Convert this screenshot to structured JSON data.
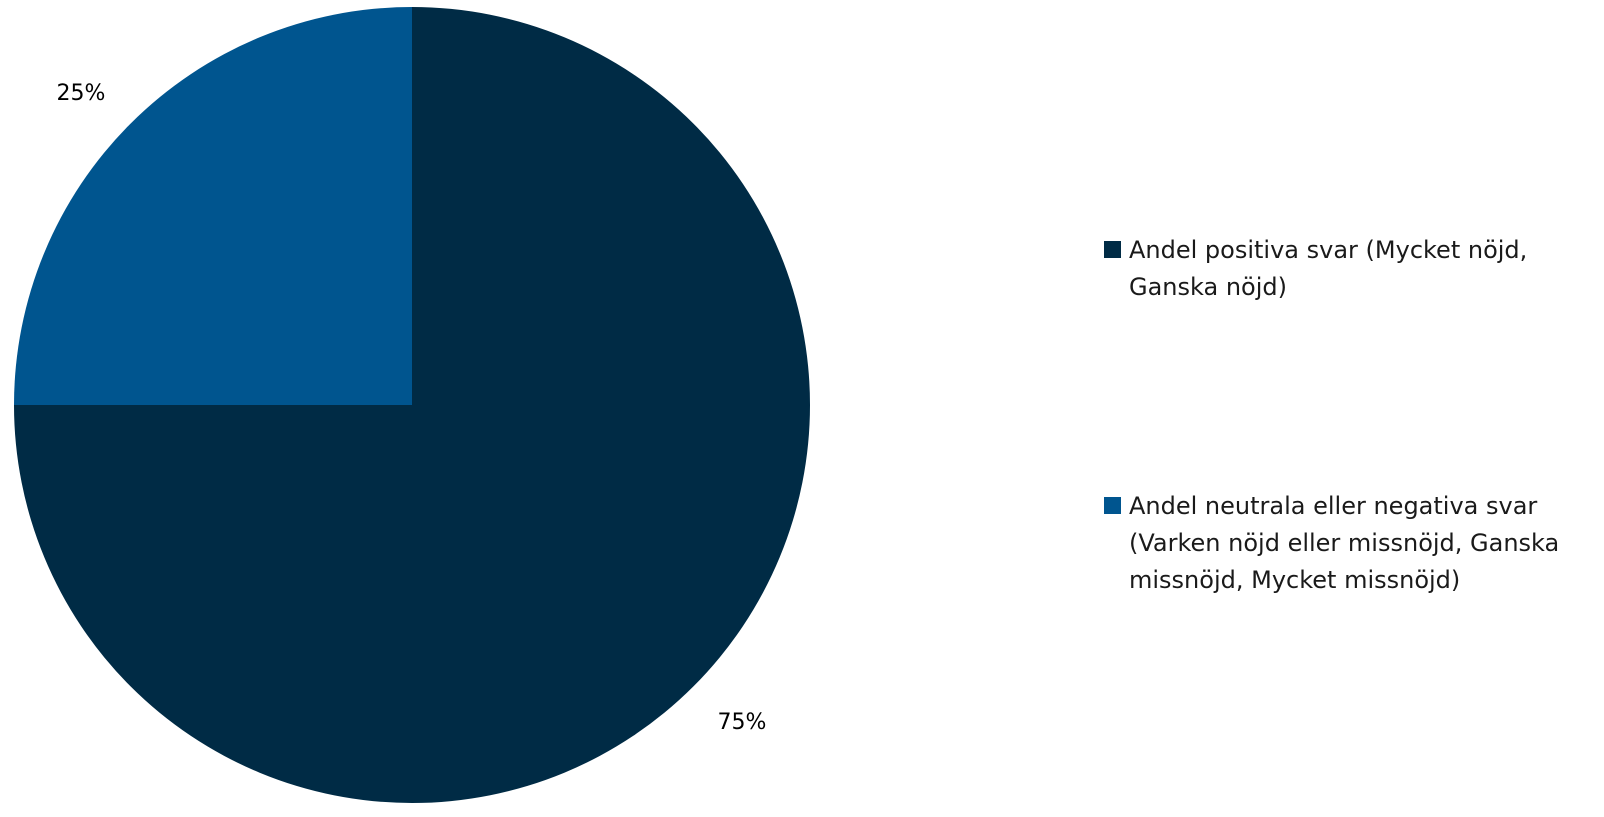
{
  "chart_data": {
    "type": "pie",
    "slices": [
      {
        "label": "Andel positiva svar (Mycket nöjd, Ganska nöjd)",
        "value": 75,
        "display": "75%",
        "color": "#002b45"
      },
      {
        "label": "Andel neutrala eller negativa svar (Varken nöjd eller missnöjd, Ganska missnöjd, Mycket missnöjd)",
        "value": 25,
        "display": "25%",
        "color": "#00558f"
      }
    ],
    "legend_position": "right"
  }
}
